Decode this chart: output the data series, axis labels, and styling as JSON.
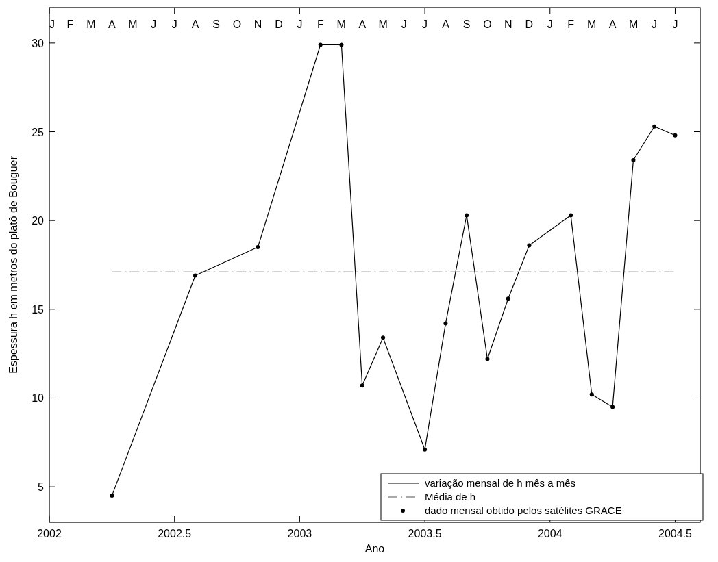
{
  "chart_data": {
    "type": "line",
    "xlabel": "Ano",
    "ylabel": "Espessura h em metros do platô de Bouguer",
    "xlim": [
      2002,
      2004.6
    ],
    "xticks": [
      2002,
      2002.5,
      2003,
      2003.5,
      2004,
      2004.5
    ],
    "annotations": [
      "J",
      "F",
      "M",
      "A",
      "M",
      "J",
      "J",
      "A",
      "S",
      "O",
      "N",
      "D",
      "J",
      "F",
      "M",
      "A",
      "M",
      "J",
      "J",
      "A",
      "S",
      "O",
      "N",
      "D",
      "J",
      "F",
      "M",
      "A",
      "M",
      "J",
      "J"
    ],
    "ylim": [
      3,
      32
    ],
    "yticks": [
      5,
      10,
      15,
      20,
      25,
      30
    ],
    "grid": false,
    "legend": "bottom right",
    "series": [
      {
        "name": "variação mensal de h mês a mês",
        "color": "#000000",
        "line_style": "solid",
        "marker": "none",
        "x": [
          2002.25,
          2002.583,
          2002.833,
          2003.083,
          2003.167,
          2003.25,
          2003.333,
          2003.5,
          2003.583,
          2003.667,
          2003.75,
          2003.833,
          2003.917,
          2004.083,
          2004.167,
          2004.25,
          2004.333,
          2004.417,
          2004.5
        ],
        "values": [
          4.5,
          16.9,
          18.5,
          29.9,
          29.9,
          10.7,
          13.4,
          7.1,
          14.2,
          20.3,
          12.2,
          15.6,
          18.6,
          20.3,
          10.2,
          9.5,
          23.4,
          25.3,
          24.8
        ]
      },
      {
        "name": "Média de h",
        "type": "line",
        "color": "#555555",
        "line_style": "dashed",
        "marker": "none",
        "x": [
          2002.25,
          2004.5
        ],
        "values": [
          17.1,
          17.1
        ]
      },
      {
        "name": "dado mensal obtido pelos satélites GRACE",
        "type": "scatter",
        "color": "#000000",
        "marker": "circle",
        "x": [
          2002.25,
          2002.583,
          2002.833,
          2003.083,
          2003.167,
          2003.25,
          2003.333,
          2003.5,
          2003.583,
          2003.667,
          2003.75,
          2003.833,
          2003.917,
          2004.083,
          2004.167,
          2004.25,
          2004.333,
          2004.417,
          2004.5
        ],
        "values": [
          4.5,
          16.9,
          18.5,
          29.9,
          29.9,
          10.7,
          13.4,
          7.1,
          14.2,
          20.3,
          12.2,
          15.6,
          18.6,
          20.3,
          10.2,
          9.5,
          23.4,
          25.3,
          24.8
        ]
      }
    ]
  }
}
